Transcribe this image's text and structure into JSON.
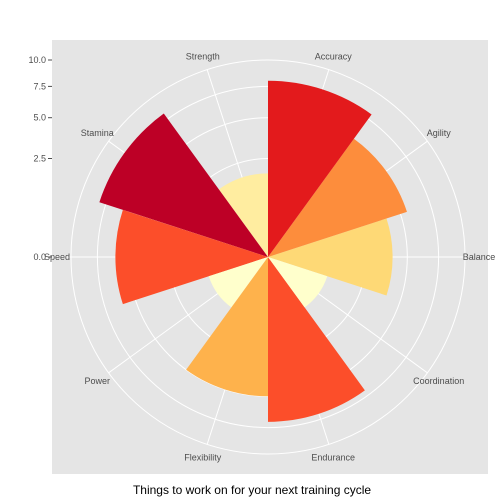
{
  "chart_data": {
    "type": "bar",
    "coord": "polar",
    "title": "Things to work on for your next training cycle",
    "xlabel": "",
    "ylabel": "",
    "categories": [
      "Balance",
      "Agility",
      "Accuracy",
      "Strength",
      "Stamina",
      "Speed",
      "Power",
      "Flexibility",
      "Endurance",
      "Coordination"
    ],
    "values": [
      4.0,
      5.5,
      8.0,
      1.8,
      8.1,
      6.0,
      1.0,
      5.0,
      7.0,
      1.0
    ],
    "colors": [
      "#FED976",
      "#FD8D3C",
      "#E31A1C",
      "#FFEDA0",
      "#BD0026",
      "#FC4E2A",
      "#FFFFCC",
      "#FEB24C",
      "#FC4E2A",
      "#FFFFCC"
    ],
    "yticks": [
      "0.0",
      "2.5",
      "5.0",
      "7.5",
      "10.0"
    ],
    "ylim": [
      0,
      10
    ],
    "grid": true
  }
}
